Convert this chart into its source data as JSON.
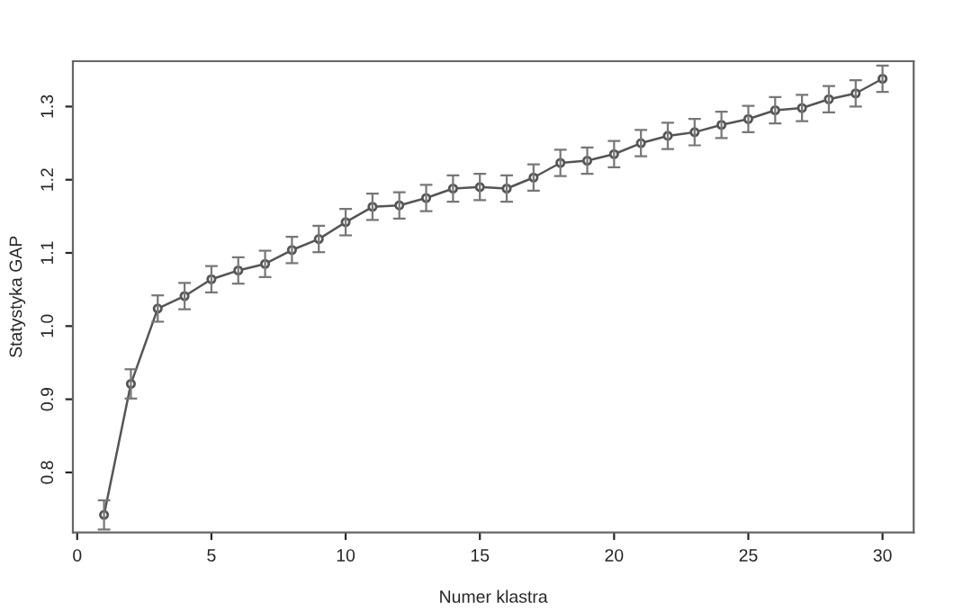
{
  "chart_data": {
    "type": "line",
    "xlabel": "Numer klastra",
    "ylabel": "Statystyka GAP",
    "x": [
      1,
      2,
      3,
      4,
      5,
      6,
      7,
      8,
      9,
      10,
      11,
      12,
      13,
      14,
      15,
      16,
      17,
      18,
      19,
      20,
      21,
      22,
      23,
      24,
      25,
      26,
      27,
      28,
      29,
      30
    ],
    "series": [
      {
        "color": "#555555",
        "values": [
          0.742,
          0.921,
          1.024,
          1.041,
          1.064,
          1.076,
          1.085,
          1.104,
          1.119,
          1.142,
          1.163,
          1.165,
          1.175,
          1.188,
          1.19,
          1.188,
          1.203,
          1.223,
          1.226,
          1.235,
          1.25,
          1.26,
          1.265,
          1.275,
          1.283,
          1.295,
          1.298,
          1.31,
          1.318,
          1.338
        ],
        "errors": [
          0.02,
          0.02,
          0.018,
          0.018,
          0.018,
          0.018,
          0.018,
          0.018,
          0.018,
          0.018,
          0.018,
          0.018,
          0.018,
          0.018,
          0.018,
          0.018,
          0.018,
          0.018,
          0.018,
          0.018,
          0.018,
          0.018,
          0.018,
          0.018,
          0.018,
          0.018,
          0.018,
          0.018,
          0.018,
          0.018
        ]
      }
    ],
    "xlim": [
      -0.16,
      31.16
    ],
    "ylim": [
      0.718,
      1.362
    ],
    "xticks": [
      0,
      5,
      10,
      15,
      20,
      25,
      30
    ],
    "yticks": [
      0.8,
      0.9,
      {
        "value": 1.0,
        "label": "1.0"
      },
      1.1,
      1.2,
      1.3
    ],
    "marker": "circle",
    "line_style": "solid",
    "grid": false,
    "legend": false
  }
}
